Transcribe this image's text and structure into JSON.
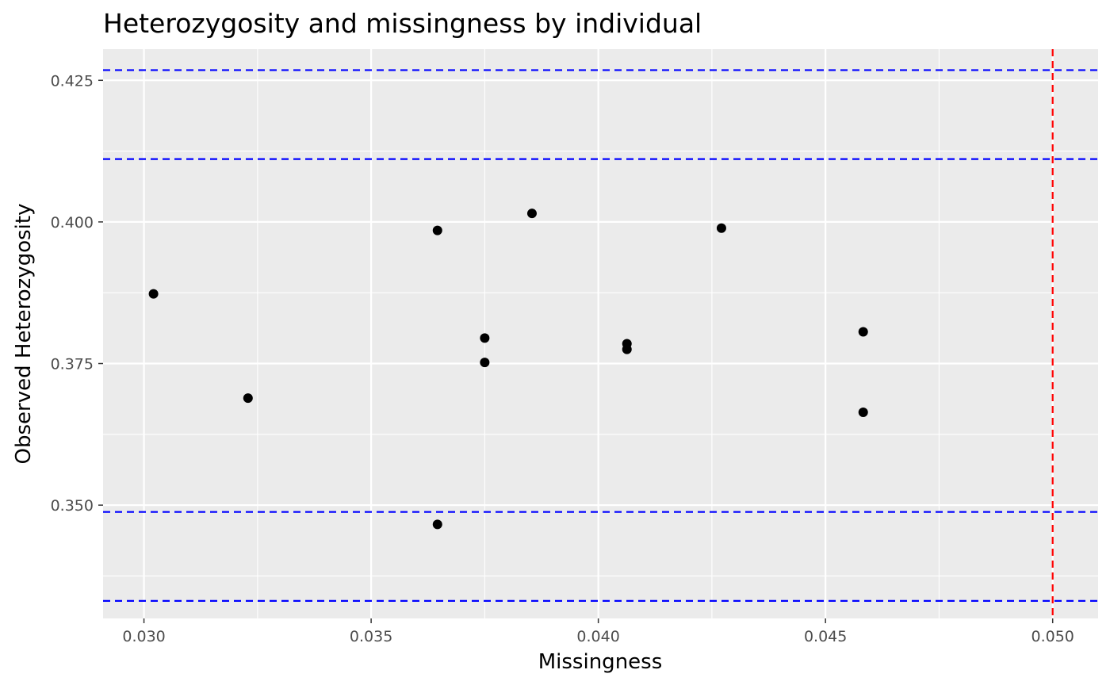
{
  "chart_data": {
    "type": "scatter",
    "title": "Heterozygosity and missingness by individual",
    "xlabel": "Missingness",
    "ylabel": "Observed Heterozygosity",
    "xlim": [
      0.0291,
      0.051
    ],
    "ylim": [
      0.33,
      0.4305
    ],
    "x_ticks": [
      0.03,
      0.035,
      0.04,
      0.045,
      0.05
    ],
    "x_tick_labels": [
      "0.030",
      "0.035",
      "0.040",
      "0.045",
      "0.050"
    ],
    "y_ticks": [
      0.35,
      0.375,
      0.4,
      0.425
    ],
    "y_tick_labels": [
      "0.350",
      "0.375",
      "0.400",
      "0.425"
    ],
    "x_minor_ticks": [
      0.0325,
      0.0375,
      0.0425,
      0.0475
    ],
    "y_minor_ticks": [
      0.3375,
      0.3625,
      0.3875,
      0.4125
    ],
    "grid": true,
    "legend": "none",
    "points": [
      {
        "x": 0.03021,
        "y": 0.3873
      },
      {
        "x": 0.03229,
        "y": 0.3689
      },
      {
        "x": 0.03646,
        "y": 0.3985
      },
      {
        "x": 0.03646,
        "y": 0.3466
      },
      {
        "x": 0.0375,
        "y": 0.3795
      },
      {
        "x": 0.0375,
        "y": 0.3752
      },
      {
        "x": 0.03854,
        "y": 0.4015
      },
      {
        "x": 0.04063,
        "y": 0.3785
      },
      {
        "x": 0.04063,
        "y": 0.3775
      },
      {
        "x": 0.04271,
        "y": 0.3989
      },
      {
        "x": 0.04583,
        "y": 0.3806
      },
      {
        "x": 0.04583,
        "y": 0.3664
      }
    ],
    "reference_lines": [
      {
        "orientation": "horizontal",
        "value": 0.4268,
        "color": "#0000ff",
        "style": "dashed"
      },
      {
        "orientation": "horizontal",
        "value": 0.4111,
        "color": "#0000ff",
        "style": "dashed"
      },
      {
        "orientation": "horizontal",
        "value": 0.3488,
        "color": "#0000ff",
        "style": "dashed"
      },
      {
        "orientation": "horizontal",
        "value": 0.3331,
        "color": "#0000ff",
        "style": "dashed"
      },
      {
        "orientation": "vertical",
        "value": 0.05,
        "color": "#ff0000",
        "style": "dashed"
      }
    ],
    "colors": {
      "panel_background": "#ebebeb",
      "grid": "#ffffff",
      "points": "#000000",
      "tick_text": "#4d4d4d",
      "tick_marks": "#333333"
    }
  }
}
